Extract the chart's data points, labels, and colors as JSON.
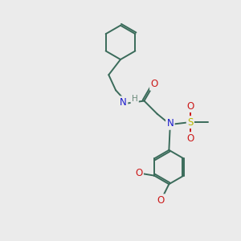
{
  "background_color": "#ebebeb",
  "bond_color": "#3a6b5a",
  "N_color": "#1a1acc",
  "O_color": "#cc1a1a",
  "S_color": "#b8b800",
  "H_color": "#6a8a7a",
  "font_size": 8.5,
  "fig_width": 3.0,
  "fig_height": 3.0,
  "dpi": 100,
  "xlim": [
    0,
    10
  ],
  "ylim": [
    0,
    10
  ],
  "lw": 1.4
}
